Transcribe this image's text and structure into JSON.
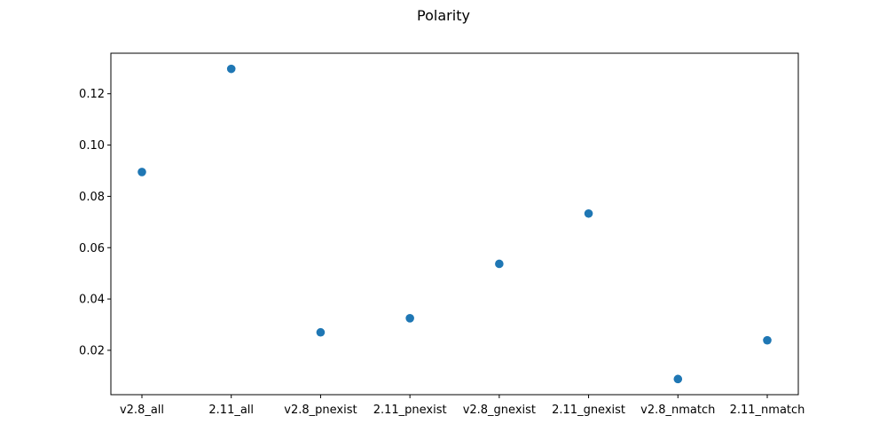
{
  "chart_data": {
    "type": "scatter",
    "title": "Polarity",
    "xlabel": "",
    "ylabel": "",
    "categories": [
      "v2.8_all",
      "2.11_all",
      "v2.8_pnexist",
      "2.11_pnexist",
      "v2.8_gnexist",
      "2.11_gnexist",
      "v2.8_nmatch",
      "2.11_nmatch"
    ],
    "series": [
      {
        "values": [
          0.0895,
          0.1297,
          0.027,
          0.0325,
          0.0537,
          0.0733,
          0.0088,
          0.0239
        ]
      }
    ],
    "yticks": [
      "0.02",
      "0.04",
      "0.06",
      "0.08",
      "0.10",
      "0.12"
    ],
    "ylim": [
      0.0027,
      0.1358
    ],
    "grid": false,
    "legend": "none",
    "color": "#1f77b4"
  }
}
